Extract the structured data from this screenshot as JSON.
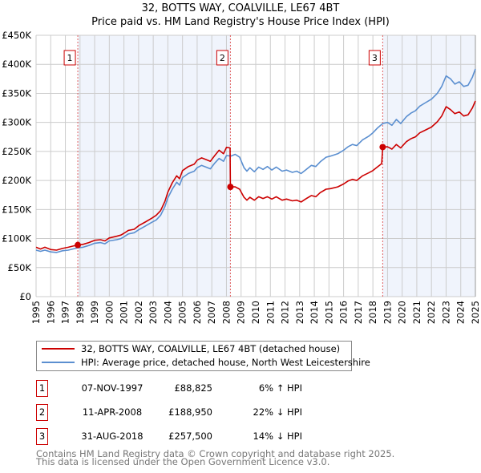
{
  "chart_data": {
    "type": "line",
    "title": "32, BOTTS WAY, COALVILLE, LE67 4BT",
    "subtitle": "Price paid vs. HM Land Registry's House Price Index (HPI)",
    "xlim": [
      1995,
      2025
    ],
    "ylim": [
      0,
      450000
    ],
    "y_ticks": [
      0,
      50000,
      100000,
      150000,
      200000,
      250000,
      300000,
      350000,
      400000,
      450000
    ],
    "y_tick_labels": [
      "£0",
      "£50K",
      "£100K",
      "£150K",
      "£200K",
      "£250K",
      "£300K",
      "£350K",
      "£400K",
      "£450K"
    ],
    "x_ticks": [
      1995,
      1996,
      1997,
      1998,
      1999,
      2000,
      2001,
      2002,
      2003,
      2004,
      2005,
      2006,
      2007,
      2008,
      2009,
      2010,
      2011,
      2012,
      2013,
      2014,
      2015,
      2016,
      2017,
      2018,
      2019,
      2020,
      2021,
      2022,
      2023,
      2024,
      2025
    ],
    "x_tick_labels": [
      "1995",
      "1996",
      "1997",
      "1998",
      "1999",
      "2000",
      "2001",
      "2002",
      "2003",
      "2004",
      "2005",
      "2006",
      "2007",
      "2008",
      "2009",
      "2010",
      "2011",
      "2012",
      "2013",
      "2014",
      "2015",
      "2016",
      "2017",
      "2018",
      "2019",
      "2020",
      "2021",
      "2022",
      "2023",
      "2024",
      "2025"
    ],
    "grid": true,
    "shaded_ranges": [
      [
        1997.85,
        2008.27
      ],
      [
        2018.67,
        2025
      ]
    ],
    "series": [
      {
        "name": "32, BOTTS WAY, COALVILLE, LE67 4BT (detached house)",
        "color": "#cc0000",
        "unit": "thousand GBP",
        "points": [
          [
            1995.0,
            85
          ],
          [
            1995.3,
            82
          ],
          [
            1995.6,
            85
          ],
          [
            1996.0,
            81
          ],
          [
            1996.4,
            80
          ],
          [
            1996.8,
            83
          ],
          [
            1997.2,
            85
          ],
          [
            1997.5,
            87
          ],
          [
            1997.85,
            88.8
          ],
          [
            1998.2,
            90
          ],
          [
            1998.6,
            93
          ],
          [
            1999.0,
            97
          ],
          [
            1999.4,
            98
          ],
          [
            1999.7,
            96
          ],
          [
            2000.0,
            101
          ],
          [
            2000.5,
            104
          ],
          [
            2000.8,
            106
          ],
          [
            2001.0,
            109
          ],
          [
            2001.3,
            114
          ],
          [
            2001.7,
            116
          ],
          [
            2002.0,
            122
          ],
          [
            2002.5,
            129
          ],
          [
            2002.9,
            135
          ],
          [
            2003.2,
            140
          ],
          [
            2003.5,
            148
          ],
          [
            2003.8,
            164
          ],
          [
            2004.0,
            180
          ],
          [
            2004.3,
            196
          ],
          [
            2004.6,
            208
          ],
          [
            2004.8,
            203
          ],
          [
            2005.0,
            217
          ],
          [
            2005.4,
            224
          ],
          [
            2005.8,
            228
          ],
          [
            2006.0,
            235
          ],
          [
            2006.3,
            239
          ],
          [
            2006.6,
            236
          ],
          [
            2006.9,
            233
          ],
          [
            2007.2,
            243
          ],
          [
            2007.5,
            252
          ],
          [
            2007.8,
            246
          ],
          [
            2008.0,
            257
          ],
          [
            2008.25,
            256
          ],
          [
            2008.27,
            188.95
          ],
          [
            2008.6,
            189
          ],
          [
            2008.9,
            185
          ],
          [
            2009.2,
            171
          ],
          [
            2009.4,
            166
          ],
          [
            2009.6,
            171
          ],
          [
            2009.9,
            166
          ],
          [
            2010.2,
            172
          ],
          [
            2010.5,
            169
          ],
          [
            2010.8,
            172
          ],
          [
            2011.1,
            168
          ],
          [
            2011.4,
            172
          ],
          [
            2011.8,
            166
          ],
          [
            2012.1,
            168
          ],
          [
            2012.5,
            165
          ],
          [
            2012.8,
            166
          ],
          [
            2013.1,
            163
          ],
          [
            2013.4,
            168
          ],
          [
            2013.8,
            174
          ],
          [
            2014.1,
            172
          ],
          [
            2014.4,
            179
          ],
          [
            2014.8,
            185
          ],
          [
            2015.1,
            186
          ],
          [
            2015.6,
            189
          ],
          [
            2016.0,
            194
          ],
          [
            2016.3,
            199
          ],
          [
            2016.6,
            202
          ],
          [
            2016.9,
            200
          ],
          [
            2017.3,
            208
          ],
          [
            2017.7,
            213
          ],
          [
            2018.0,
            217
          ],
          [
            2018.3,
            223
          ],
          [
            2018.6,
            229
          ],
          [
            2018.67,
            257.5
          ],
          [
            2019.0,
            258
          ],
          [
            2019.3,
            254
          ],
          [
            2019.6,
            262
          ],
          [
            2019.9,
            256
          ],
          [
            2020.3,
            267
          ],
          [
            2020.6,
            272
          ],
          [
            2020.9,
            275
          ],
          [
            2021.2,
            282
          ],
          [
            2021.6,
            287
          ],
          [
            2022.0,
            292
          ],
          [
            2022.4,
            301
          ],
          [
            2022.7,
            311
          ],
          [
            2023.0,
            327
          ],
          [
            2023.3,
            322
          ],
          [
            2023.6,
            315
          ],
          [
            2023.9,
            318
          ],
          [
            2024.2,
            311
          ],
          [
            2024.5,
            313
          ],
          [
            2024.8,
            325
          ],
          [
            2025.0,
            337
          ]
        ]
      },
      {
        "name": "HPI: Average price, detached house, North West Leicestershire",
        "color": "#5b8fd0",
        "unit": "thousand GBP",
        "points": [
          [
            1995.0,
            80
          ],
          [
            1995.3,
            78
          ],
          [
            1995.6,
            80
          ],
          [
            1996.0,
            77
          ],
          [
            1996.4,
            76
          ],
          [
            1996.8,
            79
          ],
          [
            1997.2,
            80
          ],
          [
            1997.5,
            82
          ],
          [
            1997.85,
            84
          ],
          [
            1998.2,
            85
          ],
          [
            1998.6,
            88
          ],
          [
            1999.0,
            92
          ],
          [
            1999.4,
            93
          ],
          [
            1999.7,
            91
          ],
          [
            2000.0,
            96
          ],
          [
            2000.5,
            98
          ],
          [
            2000.8,
            100
          ],
          [
            2001.0,
            103
          ],
          [
            2001.3,
            108
          ],
          [
            2001.7,
            110
          ],
          [
            2002.0,
            115
          ],
          [
            2002.5,
            122
          ],
          [
            2002.9,
            128
          ],
          [
            2003.2,
            132
          ],
          [
            2003.5,
            140
          ],
          [
            2003.8,
            155
          ],
          [
            2004.0,
            170
          ],
          [
            2004.3,
            185
          ],
          [
            2004.6,
            197
          ],
          [
            2004.8,
            192
          ],
          [
            2005.0,
            205
          ],
          [
            2005.4,
            212
          ],
          [
            2005.8,
            216
          ],
          [
            2006.0,
            222
          ],
          [
            2006.3,
            226
          ],
          [
            2006.6,
            223
          ],
          [
            2006.9,
            220
          ],
          [
            2007.2,
            230
          ],
          [
            2007.5,
            238
          ],
          [
            2007.8,
            233
          ],
          [
            2008.0,
            243
          ],
          [
            2008.3,
            242
          ],
          [
            2008.6,
            245
          ],
          [
            2008.9,
            240
          ],
          [
            2009.2,
            222
          ],
          [
            2009.4,
            216
          ],
          [
            2009.6,
            222
          ],
          [
            2009.9,
            215
          ],
          [
            2010.2,
            223
          ],
          [
            2010.5,
            219
          ],
          [
            2010.8,
            224
          ],
          [
            2011.1,
            218
          ],
          [
            2011.4,
            223
          ],
          [
            2011.8,
            216
          ],
          [
            2012.1,
            218
          ],
          [
            2012.5,
            214
          ],
          [
            2012.8,
            216
          ],
          [
            2013.1,
            212
          ],
          [
            2013.4,
            218
          ],
          [
            2013.8,
            226
          ],
          [
            2014.1,
            224
          ],
          [
            2014.4,
            232
          ],
          [
            2014.8,
            240
          ],
          [
            2015.1,
            242
          ],
          [
            2015.6,
            246
          ],
          [
            2016.0,
            252
          ],
          [
            2016.3,
            258
          ],
          [
            2016.6,
            262
          ],
          [
            2016.9,
            260
          ],
          [
            2017.3,
            270
          ],
          [
            2017.7,
            276
          ],
          [
            2018.0,
            282
          ],
          [
            2018.3,
            290
          ],
          [
            2018.67,
            298
          ],
          [
            2019.0,
            300
          ],
          [
            2019.3,
            295
          ],
          [
            2019.6,
            305
          ],
          [
            2019.9,
            298
          ],
          [
            2020.3,
            310
          ],
          [
            2020.6,
            316
          ],
          [
            2020.9,
            320
          ],
          [
            2021.2,
            328
          ],
          [
            2021.6,
            334
          ],
          [
            2022.0,
            340
          ],
          [
            2022.4,
            350
          ],
          [
            2022.7,
            362
          ],
          [
            2023.0,
            380
          ],
          [
            2023.3,
            375
          ],
          [
            2023.6,
            366
          ],
          [
            2023.9,
            370
          ],
          [
            2024.2,
            362
          ],
          [
            2024.5,
            364
          ],
          [
            2024.8,
            378
          ],
          [
            2025.0,
            392
          ]
        ]
      }
    ],
    "sales": [
      {
        "label": "1",
        "x": 1997.85,
        "price": 88825
      },
      {
        "label": "2",
        "x": 2008.27,
        "price": 188950
      },
      {
        "label": "3",
        "x": 2018.67,
        "price": 257500
      }
    ],
    "legend_placement": "below"
  },
  "title_line1": "32, BOTTS WAY, COALVILLE, LE67 4BT",
  "title_line2": "Price paid vs. HM Land Registry's House Price Index (HPI)",
  "legend": {
    "property": "32, BOTTS WAY, COALVILLE, LE67 4BT (detached house)",
    "hpi": "HPI: Average price, detached house, North West Leicestershire"
  },
  "transactions": [
    {
      "num": "1",
      "date": "07-NOV-1997",
      "price": "£88,825",
      "hpi": "6% ↑ HPI"
    },
    {
      "num": "2",
      "date": "11-APR-2008",
      "price": "£188,950",
      "hpi": "22% ↓ HPI"
    },
    {
      "num": "3",
      "date": "31-AUG-2018",
      "price": "£257,500",
      "hpi": "14% ↓ HPI"
    }
  ],
  "footer": {
    "line1": "Contains HM Land Registry data © Crown copyright and database right 2025.",
    "line2": "This data is licensed under the Open Government Licence v3.0."
  }
}
